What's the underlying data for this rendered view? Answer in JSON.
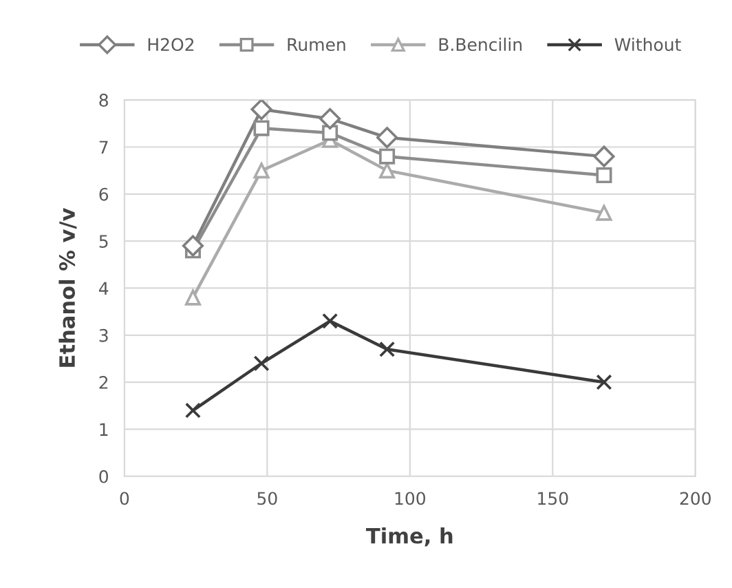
{
  "chart_data": {
    "type": "line",
    "xlabel": "Time, h",
    "ylabel": "Ethanol % v/v",
    "xlim": [
      0,
      200
    ],
    "xticks": [
      0,
      50,
      100,
      150,
      200
    ],
    "ylim": [
      0,
      8
    ],
    "yticks": [
      0,
      1,
      2,
      3,
      4,
      5,
      6,
      7,
      8
    ],
    "grid": true,
    "legend": "top",
    "line_style": "solid",
    "series": [
      {
        "name": "H2O2",
        "color": "#7f7f7f",
        "marker": "diamond",
        "x": [
          24,
          48,
          72,
          92,
          168
        ],
        "values": [
          4.9,
          7.8,
          7.6,
          7.2,
          6.8
        ]
      },
      {
        "name": "Rumen",
        "color": "#8c8c8c",
        "marker": "square",
        "x": [
          24,
          48,
          72,
          92,
          168
        ],
        "values": [
          4.8,
          7.4,
          7.3,
          6.8,
          6.4
        ]
      },
      {
        "name": "B.Bencilin",
        "color": "#ababab",
        "marker": "triangle",
        "x": [
          24,
          48,
          72,
          92,
          168
        ],
        "values": [
          3.8,
          6.5,
          7.15,
          6.5,
          5.6
        ]
      },
      {
        "name": "Without",
        "color": "#3a3a3a",
        "marker": "cross",
        "x": [
          24,
          48,
          72,
          92,
          168
        ],
        "values": [
          1.4,
          2.4,
          3.3,
          2.7,
          2.0
        ]
      }
    ]
  }
}
